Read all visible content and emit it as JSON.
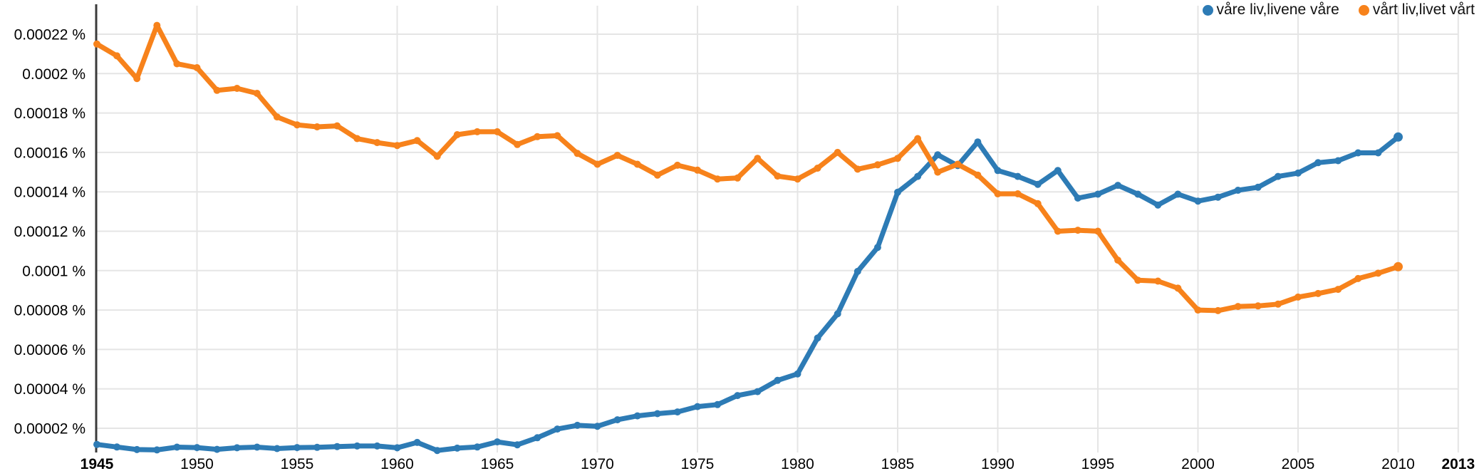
{
  "legend": {
    "series": [
      {
        "label": "våre liv,livene våre",
        "color": "#2d7bb5"
      },
      {
        "label": "vårt liv,livet vårt",
        "color": "#f7821b"
      }
    ]
  },
  "chart_data": {
    "type": "line",
    "title": "",
    "xlabel": "",
    "ylabel": "",
    "unit": "%",
    "grid": true,
    "legend_position": "top-right",
    "x_axis": {
      "range": [
        1945,
        2013
      ],
      "ticks": [
        {
          "label": "1945",
          "year": 1945,
          "bold": true
        },
        {
          "label": "1950",
          "year": 1950,
          "bold": false
        },
        {
          "label": "1955",
          "year": 1955,
          "bold": false
        },
        {
          "label": "1960",
          "year": 1960,
          "bold": false
        },
        {
          "label": "1965",
          "year": 1965,
          "bold": false
        },
        {
          "label": "1970",
          "year": 1970,
          "bold": false
        },
        {
          "label": "1975",
          "year": 1975,
          "bold": false
        },
        {
          "label": "1980",
          "year": 1980,
          "bold": false
        },
        {
          "label": "1985",
          "year": 1985,
          "bold": false
        },
        {
          "label": "1990",
          "year": 1990,
          "bold": false
        },
        {
          "label": "1995",
          "year": 1995,
          "bold": false
        },
        {
          "label": "2000",
          "year": 2000,
          "bold": false
        },
        {
          "label": "2005",
          "year": 2005,
          "bold": false
        },
        {
          "label": "2010",
          "year": 2010,
          "bold": false
        },
        {
          "label": "2013",
          "year": 2013,
          "bold": true
        }
      ]
    },
    "y_axis": {
      "ticks": [
        {
          "label": "0.00022 %",
          "value": 0.00022
        },
        {
          "label": "0.0002 %",
          "value": 0.0002
        },
        {
          "label": "0.00018 %",
          "value": 0.00018
        },
        {
          "label": "0.00016 %",
          "value": 0.00016
        },
        {
          "label": "0.00014 %",
          "value": 0.00014
        },
        {
          "label": "0.00012 %",
          "value": 0.00012
        },
        {
          "label": "0.0001 %",
          "value": 0.0001
        },
        {
          "label": "0.00008 %",
          "value": 8e-05
        },
        {
          "label": "0.00006 %",
          "value": 6e-05
        },
        {
          "label": "0.00004 %",
          "value": 4e-05
        },
        {
          "label": "0.00002 %",
          "value": 2e-05
        }
      ]
    },
    "series": [
      {
        "name": "våre liv,livene våre",
        "color": "#2d7bb5",
        "start_year": 1945,
        "end_year": 2010,
        "values": [
          1.18e-05,
          1.05e-05,
          9.2e-06,
          9e-06,
          1.04e-05,
          1.02e-05,
          9.3e-06,
          1.01e-05,
          1.04e-05,
          9.7e-06,
          1.02e-05,
          1.03e-05,
          1.07e-05,
          1.1e-05,
          1.1e-05,
          1.01e-05,
          1.28e-05,
          8.7e-06,
          9.9e-06,
          1.05e-05,
          1.31e-05,
          1.16e-05,
          1.52e-05,
          1.96e-05,
          2.15e-05,
          2.1e-05,
          2.43e-05,
          2.63e-05,
          2.74e-05,
          2.83e-05,
          3.1e-05,
          3.2e-05,
          3.66e-05,
          3.86e-05,
          4.43e-05,
          4.76e-05,
          6.58e-05,
          7.81e-05,
          9.96e-05,
          0.0001118,
          0.0001398,
          0.0001478,
          0.0001588,
          0.0001533,
          0.0001653,
          0.0001508,
          0.0001478,
          0.0001438,
          0.0001508,
          0.0001368,
          0.0001388,
          0.0001433,
          0.0001388,
          0.0001333,
          0.0001388,
          0.0001353,
          0.0001373,
          0.0001408,
          0.0001423,
          0.0001478,
          0.0001495,
          0.0001548,
          0.0001558,
          0.0001598,
          0.0001598,
          0.0001678
        ]
      },
      {
        "name": "vårt liv,livet vårt",
        "color": "#f7821b",
        "start_year": 1945,
        "end_year": 2010,
        "values": [
          0.000215,
          0.000209,
          0.0001975,
          0.0002245,
          0.000205,
          0.000203,
          0.0001915,
          0.0001925,
          0.00019,
          0.000178,
          0.000174,
          0.000173,
          0.0001735,
          0.000167,
          0.000165,
          0.0001635,
          0.000166,
          0.000158,
          0.000169,
          0.0001705,
          0.0001705,
          0.000164,
          0.000168,
          0.0001685,
          0.0001595,
          0.000154,
          0.0001585,
          0.000154,
          0.0001485,
          0.0001535,
          0.000151,
          0.0001465,
          0.000147,
          0.000157,
          0.000148,
          0.0001465,
          0.000152,
          0.00016,
          0.0001515,
          0.0001537,
          0.000157,
          0.000167,
          0.00015,
          0.000154,
          0.0001485,
          0.000139,
          0.000139,
          0.000134,
          0.00012,
          0.0001205,
          0.00012,
          0.0001053,
          9.51e-05,
          9.47e-05,
          9.11e-05,
          8e-05,
          7.97e-05,
          8.18e-05,
          8.21e-05,
          8.3e-05,
          8.66e-05,
          8.84e-05,
          9.05e-05,
          9.6e-05,
          9.87e-05,
          0.000102
        ]
      }
    ],
    "colors": {
      "gridline": "#e5e5e5",
      "axis_line": "#3b3b3b",
      "tick_text": "#000000"
    }
  }
}
